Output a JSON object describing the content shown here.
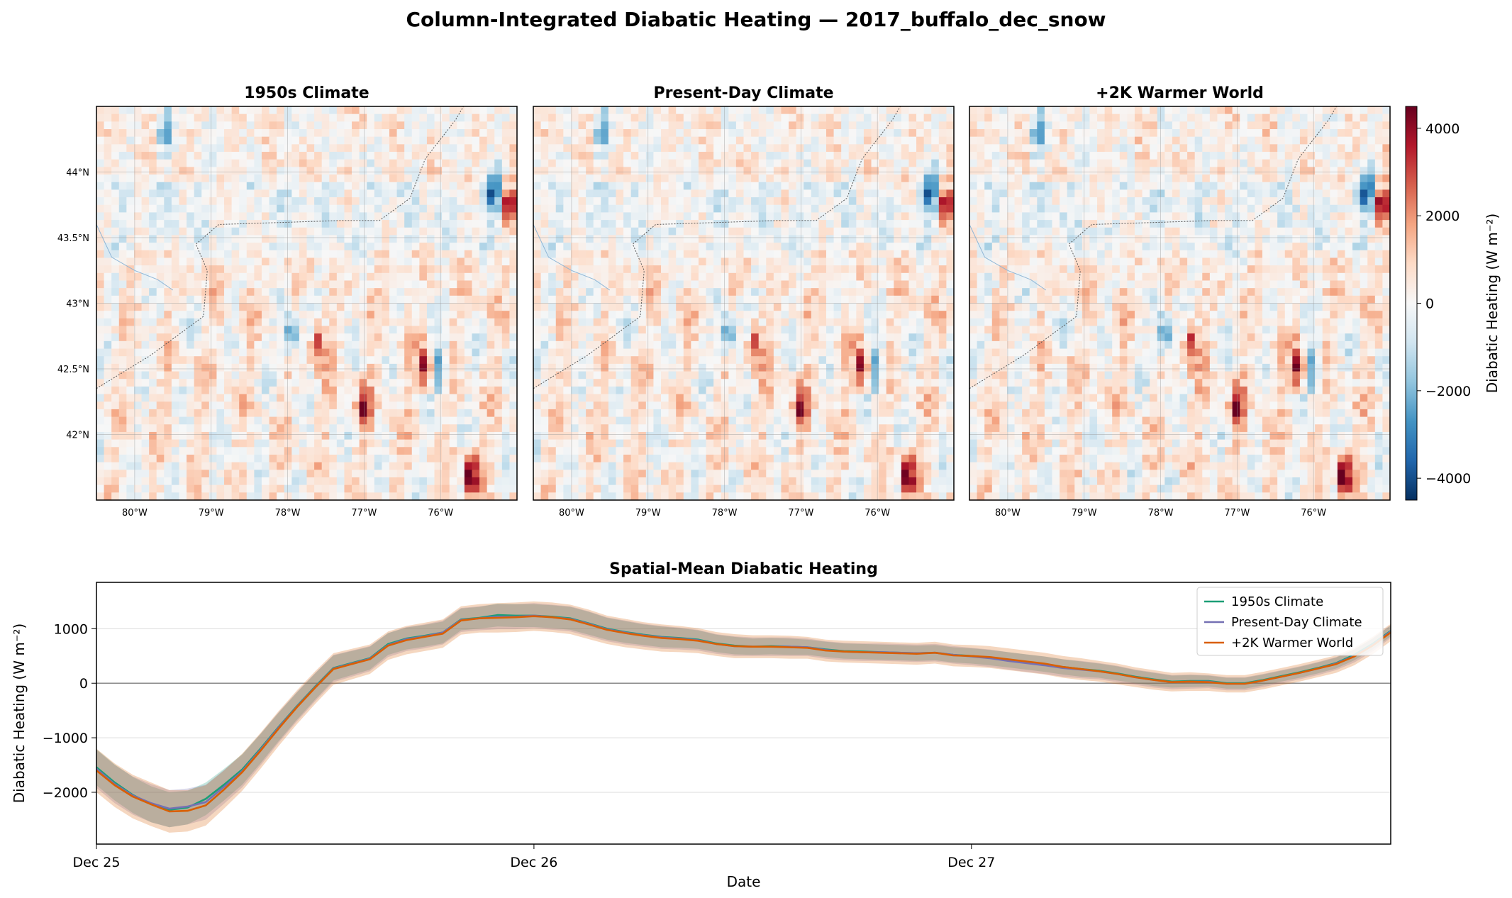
{
  "figure": {
    "title": "Column-Integrated Diabatic Heating — 2017_buffalo_dec_snow"
  },
  "colors": {
    "series": [
      "#1b9e77",
      "#7570b3",
      "#d95f02"
    ],
    "cmap_low": "#08306b",
    "cmap_mid": "#f7f7f7",
    "cmap_high": "#67000d"
  },
  "chart_data": [
    {
      "type": "heatmap",
      "title": "1950s Climate",
      "xlim": [
        -80.5,
        -75.0
      ],
      "ylim": [
        41.5,
        44.5
      ],
      "xticks": [
        "80°W",
        "79°W",
        "78°W",
        "77°W",
        "76°W"
      ],
      "yticks": [
        "44°N",
        "43.5°N",
        "43°N",
        "42.5°N",
        "42°N"
      ],
      "grid": true,
      "hotspots": [
        {
          "lon": -75.3,
          "lat": 43.85,
          "value": -3800
        },
        {
          "lon": -75.1,
          "lat": 43.75,
          "value": 4200
        },
        {
          "lon": -75.6,
          "lat": 41.7,
          "value": 4400
        },
        {
          "lon": -77.95,
          "lat": 42.75,
          "value": -3800
        },
        {
          "lon": -76.0,
          "lat": 42.5,
          "value": -3000
        },
        {
          "lon": -76.2,
          "lat": 42.5,
          "value": 3400
        },
        {
          "lon": -77.6,
          "lat": 42.7,
          "value": 3000
        },
        {
          "lon": -77.0,
          "lat": 42.2,
          "value": 2800
        },
        {
          "lon": -79.6,
          "lat": 44.3,
          "value": -2600
        }
      ]
    },
    {
      "type": "heatmap",
      "title": "Present-Day Climate",
      "xlim": [
        -80.5,
        -75.0
      ],
      "ylim": [
        41.5,
        44.5
      ],
      "xticks": [
        "80°W",
        "79°W",
        "78°W",
        "77°W",
        "76°W"
      ],
      "yticks": [
        "44°N",
        "43.5°N",
        "43°N",
        "42.5°N",
        "42°N"
      ],
      "grid": true,
      "hotspots": [
        {
          "lon": -75.3,
          "lat": 43.85,
          "value": -3700
        },
        {
          "lon": -75.1,
          "lat": 43.75,
          "value": 4100
        },
        {
          "lon": -75.6,
          "lat": 41.7,
          "value": 4300
        },
        {
          "lon": -77.95,
          "lat": 42.75,
          "value": -3700
        },
        {
          "lon": -76.0,
          "lat": 42.5,
          "value": -2900
        },
        {
          "lon": -76.2,
          "lat": 42.5,
          "value": 3300
        },
        {
          "lon": -77.6,
          "lat": 42.7,
          "value": 2900
        },
        {
          "lon": -77.0,
          "lat": 42.2,
          "value": 2700
        },
        {
          "lon": -79.6,
          "lat": 44.3,
          "value": -2500
        }
      ]
    },
    {
      "type": "heatmap",
      "title": "+2K Warmer World",
      "xlim": [
        -80.5,
        -75.0
      ],
      "ylim": [
        41.5,
        44.5
      ],
      "xticks": [
        "80°W",
        "79°W",
        "78°W",
        "77°W",
        "76°W"
      ],
      "yticks": [
        "44°N",
        "43.5°N",
        "43°N",
        "42.5°N",
        "42°N"
      ],
      "grid": true,
      "hotspots": [
        {
          "lon": -75.3,
          "lat": 43.85,
          "value": -3900
        },
        {
          "lon": -75.1,
          "lat": 43.75,
          "value": 4300
        },
        {
          "lon": -75.6,
          "lat": 41.7,
          "value": 4400
        },
        {
          "lon": -77.95,
          "lat": 42.75,
          "value": -3900
        },
        {
          "lon": -76.0,
          "lat": 42.5,
          "value": -3100
        },
        {
          "lon": -76.2,
          "lat": 42.5,
          "value": 3500
        },
        {
          "lon": -77.6,
          "lat": 42.7,
          "value": 3100
        },
        {
          "lon": -77.0,
          "lat": 42.2,
          "value": 2900
        },
        {
          "lon": -79.6,
          "lat": 44.3,
          "value": -2700
        }
      ]
    },
    {
      "type": "colorbar",
      "label": "Diabatic Heating (W m⁻²)",
      "range": [
        -4500,
        4500
      ],
      "ticks": [
        4000,
        2000,
        0,
        -2000,
        -4000
      ],
      "tick_labels": [
        "4000",
        "2000",
        "0",
        "−2000",
        "−4000"
      ]
    },
    {
      "type": "line",
      "title": "Spatial-Mean Diabatic Heating",
      "xlabel": "Date",
      "ylabel": "Diabatic Heating (W m⁻²)",
      "xlim": [
        0,
        71
      ],
      "ylim": [
        -2950,
        1850
      ],
      "xticks": [
        0,
        24,
        48
      ],
      "xtick_labels": [
        "Dec 25",
        "Dec 26",
        "Dec 27"
      ],
      "yticks": [
        1000,
        0,
        -1000,
        -2000
      ],
      "ytick_labels": [
        "1000",
        "0",
        "−1000",
        "−2000"
      ],
      "grid": "y",
      "zero_line": true,
      "legend": "top-right",
      "x": [
        0,
        1,
        2,
        3,
        4,
        5,
        6,
        7,
        8,
        9,
        10,
        11,
        12,
        13,
        14,
        15,
        16,
        17,
        18,
        19,
        20,
        21,
        22,
        23,
        24,
        25,
        26,
        27,
        28,
        29,
        30,
        31,
        32,
        33,
        34,
        35,
        36,
        37,
        38,
        39,
        40,
        41,
        42,
        43,
        44,
        45,
        46,
        47,
        48,
        49,
        50,
        51,
        52,
        53,
        54,
        55,
        56,
        57,
        58,
        59,
        60,
        61,
        62,
        63,
        64,
        65,
        66,
        67,
        68,
        69,
        70,
        71
      ],
      "series": [
        {
          "name": "1950s Climate",
          "values": [
            -1540,
            -1820,
            -2050,
            -2220,
            -2320,
            -2280,
            -2120,
            -1860,
            -1580,
            -1200,
            -800,
            -420,
            -60,
            280,
            370,
            460,
            720,
            820,
            870,
            930,
            1170,
            1200,
            1250,
            1240,
            1240,
            1220,
            1190,
            1100,
            1000,
            940,
            890,
            850,
            830,
            800,
            730,
            690,
            670,
            680,
            670,
            660,
            620,
            590,
            580,
            570,
            560,
            550,
            560,
            520,
            500,
            470,
            430,
            390,
            350,
            300,
            260,
            230,
            180,
            120,
            70,
            30,
            40,
            40,
            0,
            0,
            60,
            130,
            200,
            280,
            370,
            520,
            720,
            960
          ],
          "spread": [
            330,
            330,
            330,
            330,
            320,
            310,
            300,
            290,
            280,
            270,
            260,
            250,
            240,
            230,
            220,
            210,
            200,
            200,
            200,
            200,
            200,
            200,
            210,
            210,
            210,
            210,
            210,
            210,
            200,
            200,
            190,
            190,
            180,
            170,
            160,
            160,
            150,
            150,
            150,
            140,
            140,
            140,
            140,
            140,
            140,
            140,
            140,
            140,
            140,
            140,
            140,
            140,
            140,
            140,
            140,
            130,
            130,
            120,
            120,
            110,
            110,
            100,
            100,
            100,
            100,
            100,
            100,
            100,
            100,
            100,
            100,
            100
          ]
        },
        {
          "name": "Present-Day Climate",
          "values": [
            -1570,
            -1850,
            -2060,
            -2200,
            -2300,
            -2260,
            -2180,
            -1900,
            -1610,
            -1220,
            -810,
            -430,
            -70,
            270,
            360,
            450,
            700,
            810,
            860,
            930,
            1160,
            1190,
            1220,
            1220,
            1240,
            1210,
            1180,
            1090,
            990,
            930,
            880,
            840,
            820,
            790,
            720,
            680,
            670,
            670,
            670,
            660,
            610,
            580,
            570,
            570,
            560,
            550,
            560,
            520,
            490,
            460,
            410,
            370,
            330,
            280,
            250,
            220,
            170,
            110,
            60,
            20,
            30,
            30,
            -10,
            -10,
            50,
            120,
            190,
            270,
            360,
            500,
            700,
            950
          ],
          "spread": [
            350,
            350,
            350,
            350,
            340,
            330,
            320,
            310,
            300,
            290,
            280,
            270,
            260,
            250,
            240,
            230,
            220,
            220,
            220,
            220,
            220,
            220,
            230,
            230,
            230,
            230,
            230,
            230,
            220,
            220,
            210,
            210,
            200,
            190,
            180,
            180,
            170,
            170,
            170,
            160,
            160,
            160,
            160,
            160,
            160,
            160,
            160,
            160,
            160,
            160,
            160,
            160,
            160,
            160,
            160,
            150,
            150,
            140,
            140,
            130,
            130,
            120,
            120,
            120,
            120,
            120,
            120,
            120,
            120,
            120,
            120,
            120
          ]
        },
        {
          "name": "+2K Warmer World",
          "values": [
            -1600,
            -1870,
            -2080,
            -2220,
            -2350,
            -2340,
            -2240,
            -1950,
            -1630,
            -1240,
            -830,
            -440,
            -80,
            260,
            350,
            440,
            690,
            790,
            850,
            910,
            1150,
            1190,
            1200,
            1210,
            1230,
            1210,
            1170,
            1080,
            980,
            920,
            870,
            830,
            810,
            780,
            720,
            680,
            670,
            670,
            660,
            650,
            600,
            580,
            570,
            560,
            550,
            540,
            560,
            510,
            500,
            480,
            440,
            400,
            360,
            300,
            260,
            220,
            170,
            110,
            60,
            20,
            30,
            20,
            -10,
            -10,
            50,
            120,
            190,
            270,
            350,
            490,
            690,
            930
          ],
          "spread": [
            400,
            400,
            400,
            400,
            390,
            380,
            370,
            350,
            340,
            330,
            320,
            310,
            300,
            290,
            280,
            270,
            260,
            260,
            260,
            260,
            260,
            260,
            270,
            270,
            270,
            270,
            270,
            270,
            260,
            260,
            250,
            250,
            240,
            230,
            220,
            220,
            210,
            210,
            210,
            200,
            200,
            200,
            200,
            200,
            200,
            200,
            200,
            200,
            200,
            200,
            200,
            200,
            200,
            200,
            200,
            190,
            190,
            180,
            180,
            170,
            170,
            160,
            160,
            160,
            160,
            160,
            160,
            160,
            160,
            160,
            160,
            160
          ]
        }
      ]
    }
  ]
}
